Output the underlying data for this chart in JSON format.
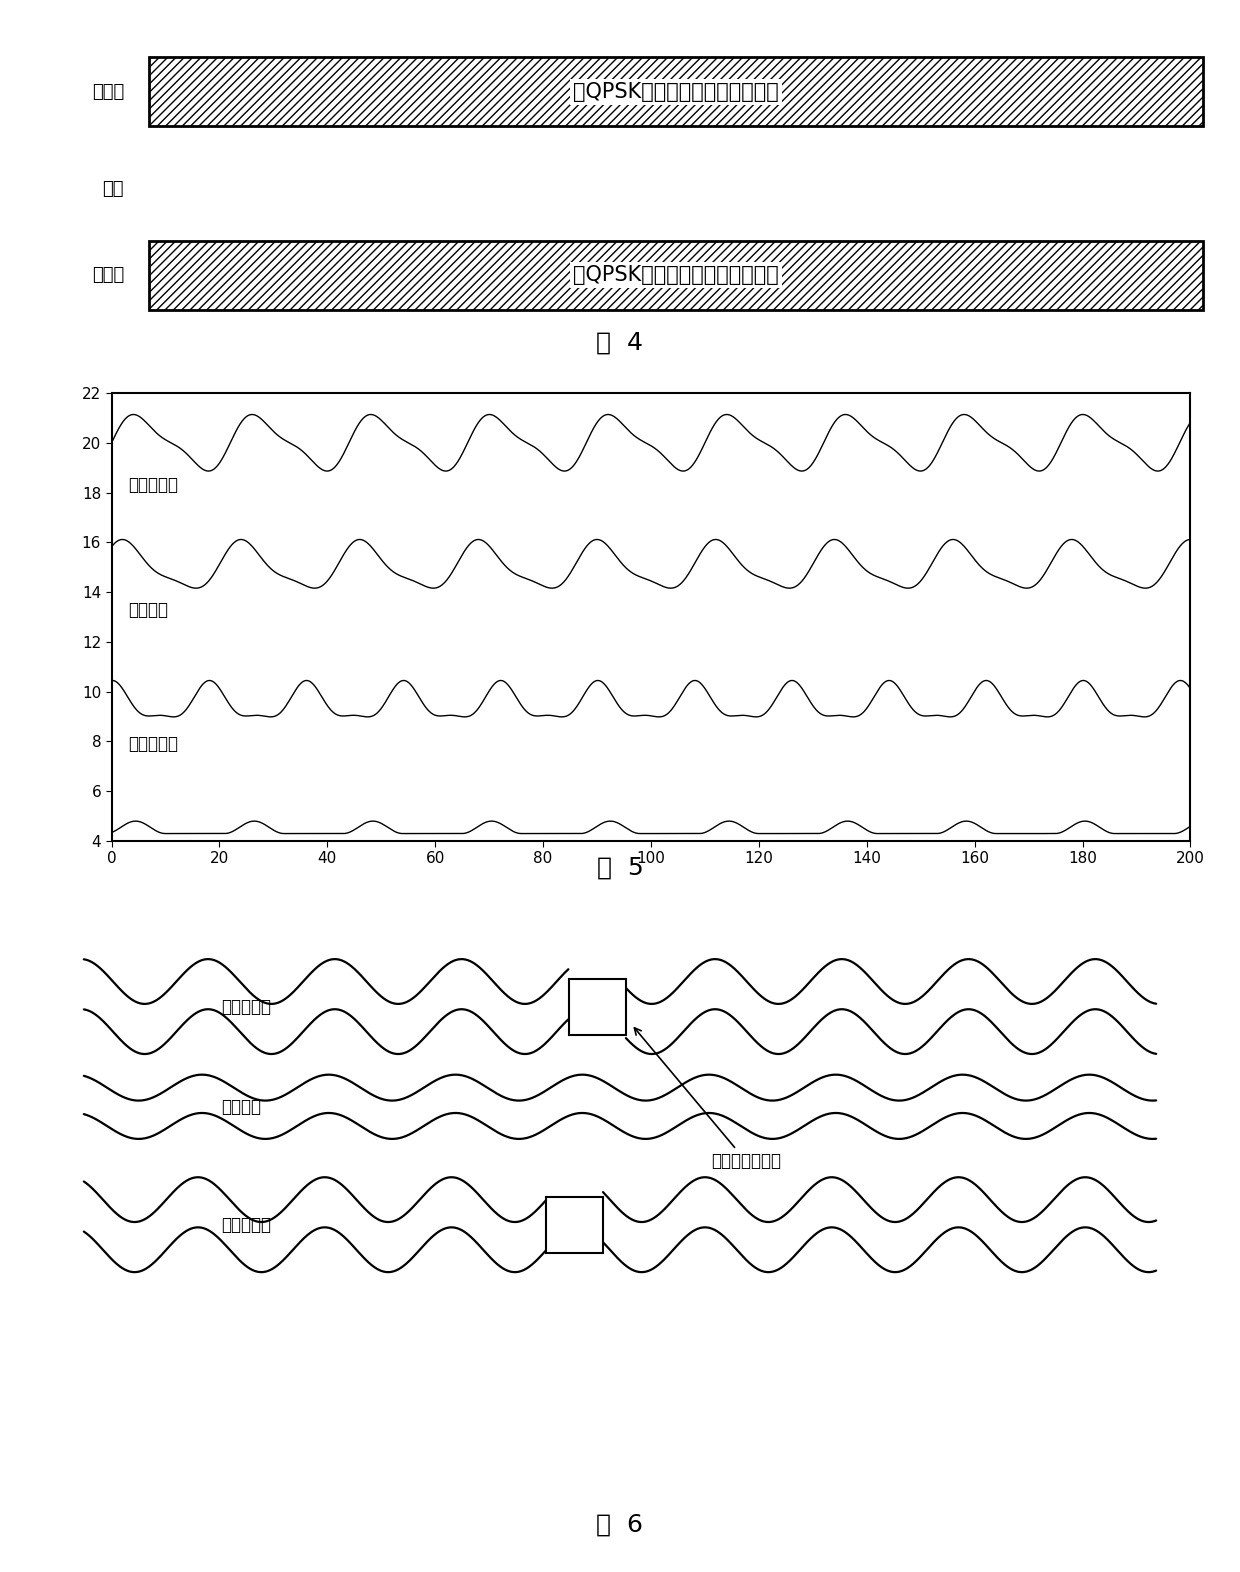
{
  "fig4": {
    "title": "图  4",
    "bar1_label": "奇凹槽",
    "bar1_text": "在QPSK同相分量中的奇凹槽地址",
    "bar2_label": "槽起",
    "bar3_label": "偶凹槽",
    "bar3_text": "在QPSK正交分量中的偶凹槽地址"
  },
  "fig5": {
    "title": "图  5",
    "xlim": [
      0,
      200
    ],
    "ylim": [
      4,
      22
    ],
    "xticks": [
      0,
      20,
      40,
      60,
      80,
      100,
      120,
      140,
      160,
      180,
      200
    ],
    "yticks": [
      4,
      6,
      8,
      10,
      12,
      14,
      16,
      18,
      20,
      22
    ],
    "label1": "奇凹槽轨道",
    "label2": "槽起轨道",
    "label3": "偶凹槽轨道"
  },
  "fig6": {
    "title": "图  6",
    "label1": "奇凹槽轨道",
    "label2": "槽起轨道",
    "label3": "镜像或同步信号",
    "label4": "偶凹槽轨道"
  }
}
